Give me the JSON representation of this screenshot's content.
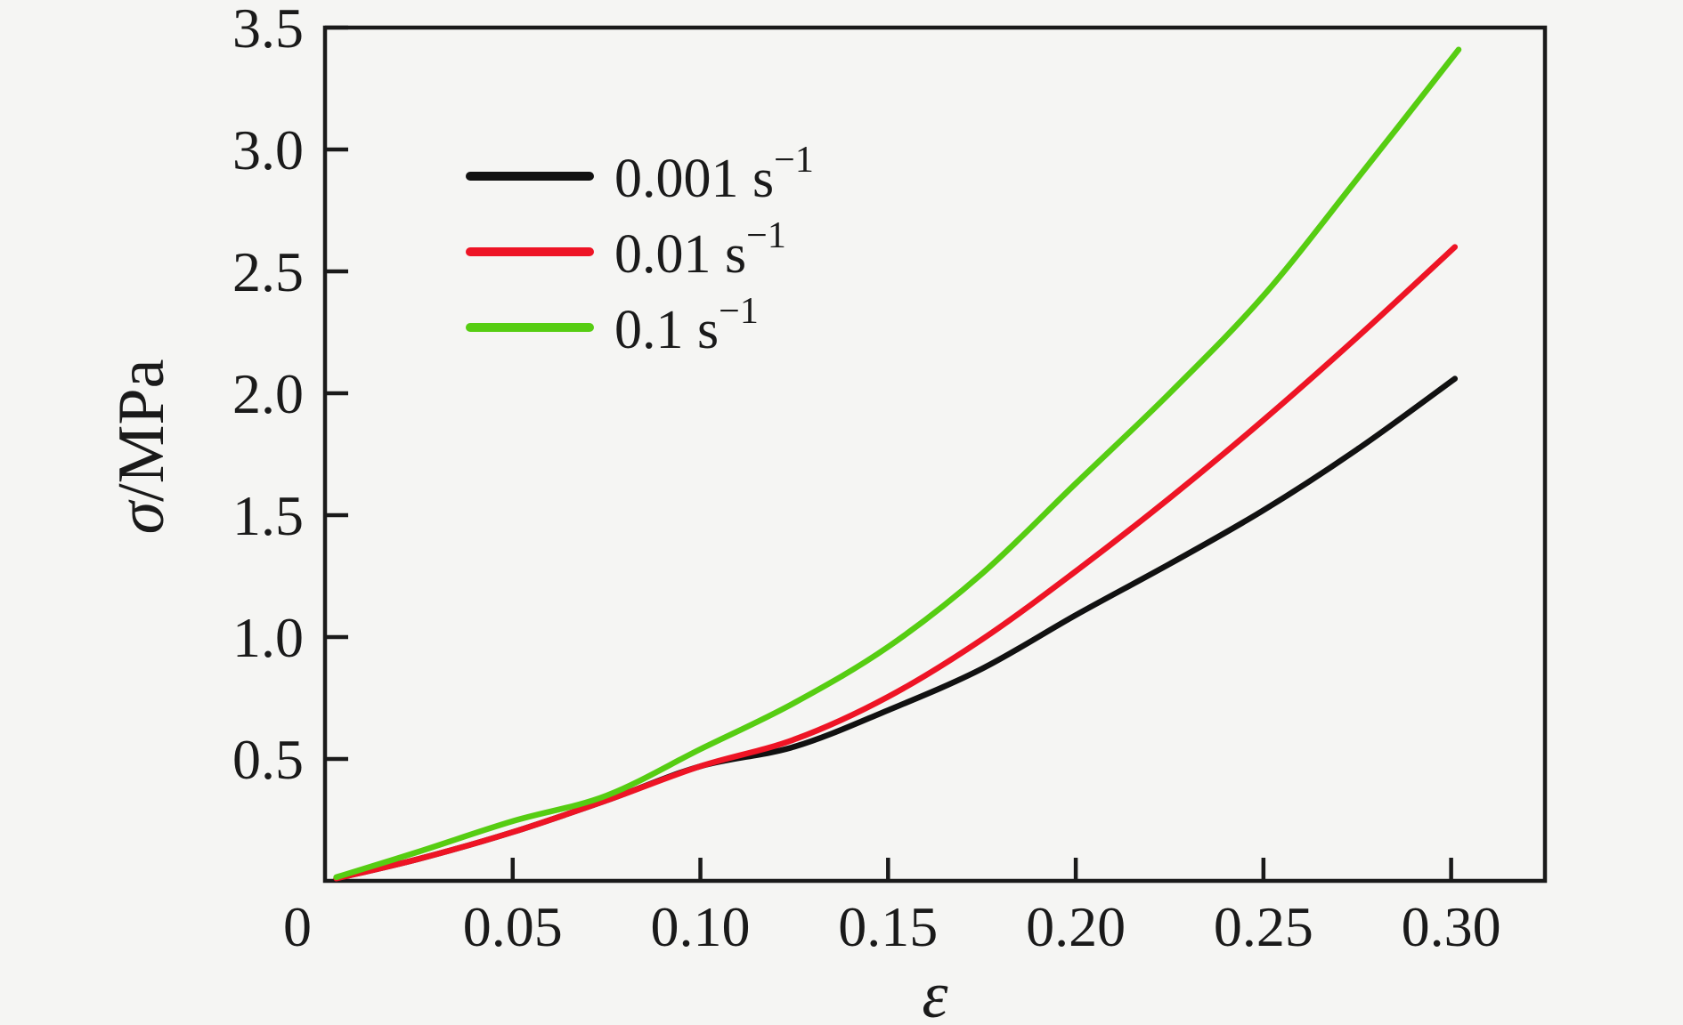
{
  "figure": {
    "background_color": "#f5f5f3",
    "frame_color": "#1a1a1a",
    "title": ""
  },
  "chart_data": {
    "type": "line",
    "title": "",
    "xlabel": "ε",
    "ylabel": "σ/MPa",
    "ylabel_symbol": "σ",
    "ylabel_rest": "/MPa",
    "xlim": [
      0,
      0.325
    ],
    "ylim": [
      0,
      3.5
    ],
    "grid": false,
    "legend_position": "upper-left-inside",
    "x_ticks": [
      {
        "value": 0.0,
        "label": "0"
      },
      {
        "value": 0.05,
        "label": "0.05"
      },
      {
        "value": 0.1,
        "label": "0.10"
      },
      {
        "value": 0.15,
        "label": "0.15"
      },
      {
        "value": 0.2,
        "label": "0.20"
      },
      {
        "value": 0.25,
        "label": "0.25"
      },
      {
        "value": 0.3,
        "label": "0.30"
      }
    ],
    "y_ticks": [
      {
        "value": 0.5,
        "label": "0.5"
      },
      {
        "value": 1.0,
        "label": "1.0"
      },
      {
        "value": 1.5,
        "label": "1.5"
      },
      {
        "value": 2.0,
        "label": "2.0"
      },
      {
        "value": 2.5,
        "label": "2.5"
      },
      {
        "value": 3.0,
        "label": "3.0"
      },
      {
        "value": 3.5,
        "label": "3.5"
      }
    ],
    "series": [
      {
        "name": "0.001 s⁻¹",
        "slug": "strain-rate-0-001",
        "color": "#111111",
        "legend_text": "0.001 s",
        "legend_exponent": "−1",
        "x": [
          0.003,
          0.025,
          0.05,
          0.075,
          0.1,
          0.125,
          0.15,
          0.175,
          0.2,
          0.225,
          0.25,
          0.275,
          0.301
        ],
        "y": [
          0.01,
          0.09,
          0.2,
          0.33,
          0.47,
          0.55,
          0.7,
          0.87,
          1.09,
          1.3,
          1.52,
          1.77,
          2.06
        ]
      },
      {
        "name": "0.01 s⁻¹",
        "slug": "strain-rate-0-01",
        "color": "#ee1425",
        "legend_text": "0.01 s",
        "legend_exponent": "−1",
        "x": [
          0.003,
          0.025,
          0.05,
          0.075,
          0.1,
          0.125,
          0.15,
          0.175,
          0.2,
          0.225,
          0.25,
          0.275,
          0.301
        ],
        "y": [
          0.01,
          0.09,
          0.2,
          0.33,
          0.47,
          0.58,
          0.755,
          0.99,
          1.27,
          1.57,
          1.89,
          2.23,
          2.6
        ]
      },
      {
        "name": "0.1 s⁻¹",
        "slug": "strain-rate-0-1",
        "color": "#56cd12",
        "legend_text": "0.1 s",
        "legend_exponent": "−1",
        "x": [
          0.003,
          0.025,
          0.05,
          0.075,
          0.1,
          0.125,
          0.15,
          0.175,
          0.2,
          0.225,
          0.25,
          0.275,
          0.302
        ],
        "y": [
          0.015,
          0.12,
          0.245,
          0.35,
          0.54,
          0.73,
          0.96,
          1.26,
          1.63,
          2.0,
          2.4,
          2.88,
          3.41
        ]
      }
    ]
  }
}
